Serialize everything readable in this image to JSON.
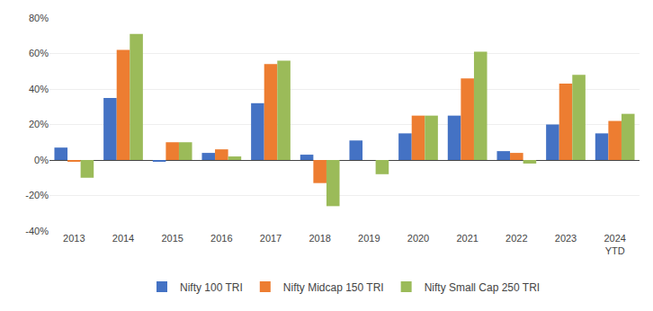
{
  "chart_data": {
    "type": "bar",
    "categories": [
      "2013",
      "2014",
      "2015",
      "2016",
      "2017",
      "2018",
      "2019",
      "2020",
      "2021",
      "2022",
      "2023",
      "2024\nYTD"
    ],
    "series": [
      {
        "name": "Nifty 100 TRI",
        "color": "#4472C4",
        "values": [
          7,
          35,
          -1,
          4,
          32,
          3,
          11,
          15,
          25,
          5,
          20,
          15
        ]
      },
      {
        "name": "Nifty Midcap 150 TRI",
        "color": "#ED7D31",
        "values": [
          -1,
          62,
          10,
          6,
          54,
          -13,
          0,
          25,
          46,
          4,
          43,
          22
        ]
      },
      {
        "name": "Nifty Small Cap 250 TRI",
        "color": "#9BBB59",
        "values": [
          -10,
          71,
          10,
          2,
          56,
          -26,
          -8,
          25,
          61,
          -2,
          48,
          26
        ]
      }
    ],
    "ylim": [
      -40,
      80
    ],
    "yticks": [
      {
        "value": -40,
        "label": "-40%"
      },
      {
        "value": -20,
        "label": "-20%"
      },
      {
        "value": 0,
        "label": "0%"
      },
      {
        "value": 20,
        "label": "20%"
      },
      {
        "value": 40,
        "label": "40%"
      },
      {
        "value": 60,
        "label": "60%"
      },
      {
        "value": 80,
        "label": "80%"
      }
    ],
    "grid": true,
    "legend": "bottom"
  }
}
